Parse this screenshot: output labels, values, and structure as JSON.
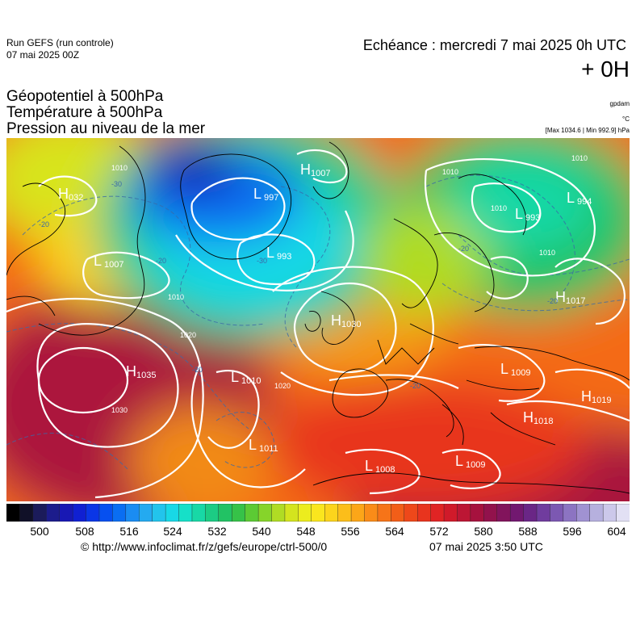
{
  "header": {
    "run_title": "Run GEFS (run controle)",
    "run_date": "07 mai 2025 00Z",
    "echeance": "Echéance : mercredi 7 mai 2025 0h UTC",
    "offset": "+ 0H"
  },
  "parameters": {
    "line1": "Géopotentiel à 500hPa",
    "line2": "Température à 500hPa",
    "line3": "Pression au niveau de la mer"
  },
  "units": {
    "geopotential": "gpdam",
    "temperature": "°C",
    "pressure": "[Max 1034.6 | Min 992.9] hPa"
  },
  "map": {
    "region": "Europe / North Atlantic",
    "pressure_centers": [
      {
        "type": "H",
        "value": "032"
      },
      {
        "type": "L",
        "value": "1007"
      },
      {
        "type": "H",
        "value": "1035"
      },
      {
        "type": "L",
        "value": "997"
      },
      {
        "type": "H",
        "value": "1007"
      },
      {
        "type": "L",
        "value": "993"
      },
      {
        "type": "L",
        "value": "993"
      },
      {
        "type": "L",
        "value": "994"
      },
      {
        "type": "H",
        "value": "1030"
      },
      {
        "type": "L",
        "value": "1010"
      },
      {
        "type": "L",
        "value": "1011"
      },
      {
        "type": "H",
        "value": "1017"
      },
      {
        "type": "L",
        "value": "1009"
      },
      {
        "type": "H",
        "value": "1019"
      },
      {
        "type": "H",
        "value": "1018"
      },
      {
        "type": "L",
        "value": "1009"
      },
      {
        "type": "L",
        "value": "1008"
      }
    ],
    "isobar_labels": [
      "1010",
      "1010",
      "1010",
      "1010",
      "1010",
      "1020",
      "1020",
      "1030",
      "1010"
    ],
    "isotherm_labels": [
      "-20",
      "-20",
      "-30",
      "-20",
      "-20",
      "-30",
      "-20",
      "-20"
    ]
  },
  "colorbar": {
    "palette": [
      "#000000",
      "#101028",
      "#1b1b5a",
      "#1c1c8c",
      "#1818b4",
      "#1020d2",
      "#0a36e6",
      "#0650f0",
      "#0a6ef2",
      "#1a8cf2",
      "#24aaf0",
      "#22c4ec",
      "#18d8e6",
      "#16e0c8",
      "#18d8a6",
      "#1ccc84",
      "#22c264",
      "#36c248",
      "#5cca34",
      "#86d42a",
      "#b0dc24",
      "#d4e41e",
      "#ecec1e",
      "#fae61e",
      "#fcd41c",
      "#fcbe1a",
      "#fca618",
      "#fa8c18",
      "#f67418",
      "#f25e18",
      "#ee481a",
      "#e8341e",
      "#e02424",
      "#d01a2a",
      "#bc1634",
      "#a6123e",
      "#92124c",
      "#82145c",
      "#721870",
      "#6a2686",
      "#703c9e",
      "#7c58b2",
      "#8c74c2",
      "#a092d2",
      "#b6b0de",
      "#ccc8ea",
      "#e2e0f4"
    ],
    "tick_labels": [
      "500",
      "508",
      "516",
      "524",
      "532",
      "540",
      "548",
      "556",
      "564",
      "572",
      "580",
      "588",
      "596",
      "604"
    ]
  },
  "footer": {
    "url": "© http://www.infoclimat.fr/z/gefs/europe/ctrl-500/0",
    "time": "07 mai 2025  3:50 UTC"
  }
}
